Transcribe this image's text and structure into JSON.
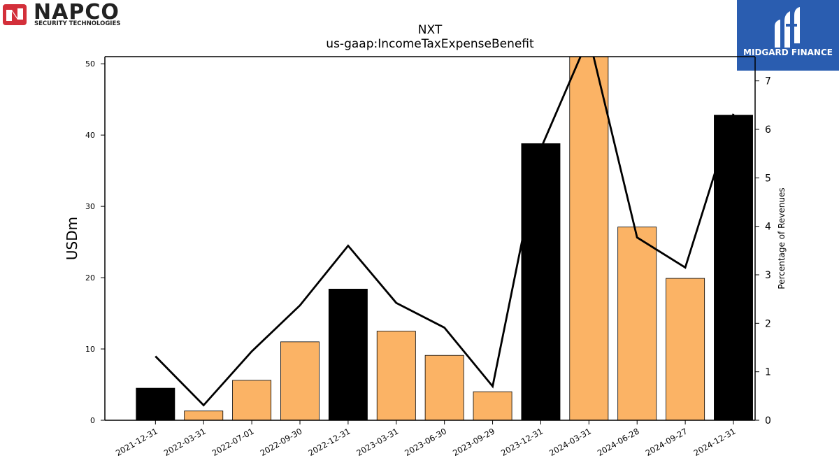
{
  "logos": {
    "left": {
      "name": "NAPCO",
      "tagline": "SECURITY TECHNOLOGIES",
      "color": "#d32f3a"
    },
    "right": {
      "name": "MIDGARD FINANCE",
      "color": "#2a5db0"
    }
  },
  "chart_data": {
    "type": "bar",
    "title": "NXT",
    "subtitle": "us-gaap:IncomeTaxExpenseBenefit",
    "ylabel": "USDm",
    "y2label": "Percentage of Revenues",
    "ylim": [
      0,
      51
    ],
    "y2lim": [
      0,
      7.5
    ],
    "yticks": [
      0,
      10,
      20,
      30,
      40,
      50
    ],
    "y2ticks": [
      0,
      1,
      2,
      3,
      4,
      5,
      6,
      7
    ],
    "categories": [
      "2021-12-31",
      "2022-03-31",
      "2022-07-01",
      "2022-09-30",
      "2022-12-31",
      "2023-03-31",
      "2023-06-30",
      "2023-09-29",
      "2023-12-31",
      "2024-03-31",
      "2024-06-28",
      "2024-09-27",
      "2024-12-31"
    ],
    "series": [
      {
        "kind": "bar",
        "values": [
          4.5,
          1.3,
          5.6,
          11.0,
          18.4,
          12.5,
          9.1,
          4.0,
          38.8,
          51.5,
          27.1,
          19.9,
          42.8
        ],
        "colors": [
          "#000000",
          "#fbb365",
          "#fbb365",
          "#fbb365",
          "#000000",
          "#fbb365",
          "#fbb365",
          "#fbb365",
          "#000000",
          "#fbb365",
          "#fbb365",
          "#fbb365",
          "#000000"
        ]
      },
      {
        "kind": "line",
        "axis": "right",
        "color": "#000000",
        "values": [
          1.32,
          0.31,
          1.42,
          2.37,
          3.6,
          2.42,
          1.91,
          0.7,
          5.6,
          7.9,
          3.77,
          3.15,
          6.32
        ]
      }
    ],
    "grid": false
  }
}
